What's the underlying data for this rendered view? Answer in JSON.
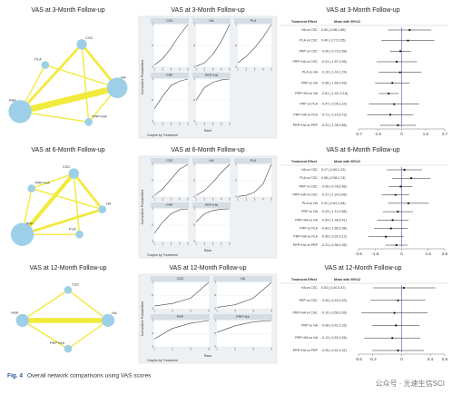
{
  "panels": [
    {
      "network": {
        "title": "VAS at 3-Month Follow-up",
        "nodes": [
          {
            "label": "CSC",
            "size": 3
          },
          {
            "label": "PLA",
            "size": 2
          },
          {
            "label": "HA",
            "size": 7
          },
          {
            "label": "PRP",
            "size": 8
          },
          {
            "label": "PRP+HA",
            "size": 2
          }
        ],
        "edges": [
          {
            "from": 3,
            "to": 2,
            "weight": 5
          },
          {
            "from": 3,
            "to": 0,
            "weight": 2
          },
          {
            "from": 0,
            "to": 2,
            "weight": 2
          },
          {
            "from": 3,
            "to": 1,
            "weight": 1
          },
          {
            "from": 1,
            "to": 2,
            "weight": 1
          },
          {
            "from": 3,
            "to": 4,
            "weight": 1
          },
          {
            "from": 2,
            "to": 4,
            "weight": 1
          },
          {
            "from": 0,
            "to": 4,
            "weight": 1
          }
        ]
      },
      "ranking": {
        "title": "VAS at 3-Month Follow-up",
        "y_label": "Cumulative Probabilities",
        "x_label": "Rank",
        "note": "Graphs by Treatment",
        "yticks": [
          0,
          {
            "value": 0.5,
            "label": ".5"
          },
          1
        ],
        "xticks": [
          1,
          2,
          3,
          4,
          5
        ],
        "panels": [
          {
            "label": "CSC",
            "values": [
              0.05,
              0.2,
              0.45,
              0.75,
              1
            ]
          },
          {
            "label": "HA",
            "values": [
              0.02,
              0.1,
              0.3,
              0.6,
              1
            ]
          },
          {
            "label": "PLA",
            "values": [
              0.1,
              0.25,
              0.45,
              0.7,
              1
            ]
          },
          {
            "label": "PRP",
            "values": [
              0.3,
              0.6,
              0.85,
              0.95,
              1
            ]
          },
          {
            "label": "PRP+HA",
            "values": [
              0.5,
              0.8,
              0.92,
              0.98,
              1
            ]
          }
        ]
      },
      "forest": {
        "title": "VAS at 3-Month Follow-up",
        "headers": [
          "Treatment Effect",
          "Mean with 95%CI"
        ],
        "xlim": [
          -2.7,
          2.7
        ],
        "xticks": [
          -2.7,
          -1.5,
          0,
          1.5,
          2.7
        ],
        "rows": [
          {
            "label": "HA vs CSC",
            "text": "0.50 (-0.86,1.86)",
            "mean": 0.5,
            "lo": -0.86,
            "hi": 1.86
          },
          {
            "label": "PLA vs CSC",
            "text": "0.40 (-1.27,2.05)",
            "mean": 0.4,
            "lo": -1.27,
            "hi": 2.05
          },
          {
            "label": "PRP vs CSC",
            "text": "-0.08 (-0.73,0.58)",
            "mean": -0.08,
            "lo": -0.73,
            "hi": 0.58
          },
          {
            "label": "PRP+HA vs CSC",
            "text": "-0.31 (-1.57,0.96)",
            "mean": -0.31,
            "lo": -1.57,
            "hi": 0.96
          },
          {
            "label": "PLA vs HA",
            "text": "-0.10 (-1.44,1.24)",
            "mean": -0.1,
            "lo": -1.44,
            "hi": 1.24
          },
          {
            "label": "PRP vs HA",
            "text": "-0.58 (-1.66,0.49)",
            "mean": -0.58,
            "lo": -1.66,
            "hi": 0.49
          },
          {
            "label": "PRP+HA vs HA",
            "text": "-0.81 (-1.43,-0.18)",
            "mean": -0.81,
            "lo": -1.43,
            "hi": -0.18
          },
          {
            "label": "PRP vs PLA",
            "text": "-0.47 (-2.05,1.10)",
            "mean": -0.47,
            "lo": -2.05,
            "hi": 1.1
          },
          {
            "label": "PRP+HA vs PLA",
            "text": "-0.71 (-2.15,0.73)",
            "mean": -0.71,
            "lo": -2.15,
            "hi": 0.73
          },
          {
            "label": "PRP+HA vs PRP",
            "text": "-0.23 (-1.35,0.88)",
            "mean": -0.23,
            "lo": -1.35,
            "hi": 0.88
          }
        ]
      }
    },
    {
      "network": {
        "title": "VAS at 6-Month Follow-up",
        "nodes": [
          {
            "label": "PRP+HA",
            "size": 2
          },
          {
            "label": "CSC",
            "size": 3
          },
          {
            "label": "HA",
            "size": 2
          },
          {
            "label": "PLA",
            "size": 2
          },
          {
            "label": "PRP",
            "size": 8
          }
        ],
        "edges": [
          {
            "from": 4,
            "to": 1,
            "weight": 3
          },
          {
            "from": 4,
            "to": 2,
            "weight": 2
          },
          {
            "from": 1,
            "to": 2,
            "weight": 2
          },
          {
            "from": 4,
            "to": 0,
            "weight": 1
          },
          {
            "from": 0,
            "to": 1,
            "weight": 1
          },
          {
            "from": 4,
            "to": 3,
            "weight": 1
          },
          {
            "from": 1,
            "to": 3,
            "weight": 1
          },
          {
            "from": 0,
            "to": 2,
            "weight": 1
          }
        ]
      },
      "ranking": {
        "title": "VAS at 6-Month Follow-up",
        "y_label": "Cumulative Probabilities",
        "x_label": "Rank",
        "note": "Graphs by Treatment",
        "yticks": [
          0,
          {
            "value": 0.5,
            "label": ".5"
          },
          1
        ],
        "xticks": [
          1,
          2,
          3,
          4,
          5
        ],
        "panels": [
          {
            "label": "CSC",
            "values": [
              0.05,
              0.25,
              0.55,
              0.85,
              1
            ]
          },
          {
            "label": "HA",
            "values": [
              0.05,
              0.2,
              0.45,
              0.75,
              1
            ]
          },
          {
            "label": "PLA",
            "values": [
              0.02,
              0.05,
              0.15,
              0.4,
              1
            ]
          },
          {
            "label": "PRP",
            "values": [
              0.25,
              0.6,
              0.85,
              0.97,
              1
            ]
          },
          {
            "label": "PRP+HA",
            "values": [
              0.6,
              0.85,
              0.95,
              0.99,
              1
            ]
          }
        ]
      },
      "forest": {
        "title": "VAS at 6-Month Follow-up",
        "headers": [
          "Treatment Effect",
          "Mean with 95%CI"
        ],
        "xlim": [
          -2.6,
          2.6
        ],
        "xticks": [
          -2.6,
          -1.6,
          0,
          1.6,
          2.6
        ],
        "rows": [
          {
            "label": "HA vs CSC",
            "text": "0.17 (-0.89,1.22)",
            "mean": 0.17,
            "lo": -0.89,
            "hi": 1.22
          },
          {
            "label": "PLA vs CSC",
            "text": "0.58 (-0.58,1.74)",
            "mean": 0.58,
            "lo": -0.58,
            "hi": 1.74
          },
          {
            "label": "PRP vs CSC",
            "text": "-0.06 (-0.78,0.66)",
            "mean": -0.06,
            "lo": -0.78,
            "hi": 0.66
          },
          {
            "label": "PRP+HA vs CSC",
            "text": "-0.37 (-1.20,0.46)",
            "mean": -0.37,
            "lo": -1.2,
            "hi": 0.46
          },
          {
            "label": "PLA vs HA",
            "text": "0.41 (-0.81,1.64)",
            "mean": 0.41,
            "lo": -0.81,
            "hi": 1.64
          },
          {
            "label": "PRP vs HA",
            "text": "-0.23 (-1.14,0.68)",
            "mean": -0.23,
            "lo": -1.14,
            "hi": 0.68
          },
          {
            "label": "PRP+HA vs HA",
            "text": "-0.54 (-1.48,0.41)",
            "mean": -0.54,
            "lo": -1.48,
            "hi": 0.41
          },
          {
            "label": "PRP vs PLA",
            "text": "-0.64 (-1.66,0.38)",
            "mean": -0.64,
            "lo": -1.66,
            "hi": 0.38
          },
          {
            "label": "PRP+HA vs PLA",
            "text": "-0.95 (-2.02,0.12)",
            "mean": -0.95,
            "lo": -2.02,
            "hi": 0.12
          },
          {
            "label": "PRP+HA vs PRP",
            "text": "-0.31 (-0.98,0.36)",
            "mean": -0.31,
            "lo": -0.98,
            "hi": 0.36
          }
        ]
      }
    },
    {
      "network": {
        "title": "VAS at 12-Month Follow-up",
        "nodes": [
          {
            "label": "CSC",
            "size": 2
          },
          {
            "label": "PRP",
            "size": 4
          },
          {
            "label": "HA",
            "size": 4
          },
          {
            "label": "PRP+HA",
            "size": 2
          }
        ],
        "edges": [
          {
            "from": 1,
            "to": 2,
            "weight": 4
          },
          {
            "from": 1,
            "to": 0,
            "weight": 1
          },
          {
            "from": 0,
            "to": 2,
            "weight": 1
          },
          {
            "from": 1,
            "to": 3,
            "weight": 1
          },
          {
            "from": 2,
            "to": 3,
            "weight": 1
          }
        ]
      },
      "ranking": {
        "title": "VAS at 12-Month Follow-up",
        "y_label": "Cumulative Probabilities",
        "x_label": "Rank",
        "note": "Graphs by Treatment",
        "yticks": [
          0,
          {
            "value": 0.5,
            "label": ".5"
          },
          1
        ],
        "xticks": [
          1,
          2,
          3,
          4
        ],
        "panels": [
          {
            "label": "CSC",
            "values": [
              0.1,
              0.2,
              0.4,
              1
            ]
          },
          {
            "label": "HA",
            "values": [
              0.05,
              0.15,
              0.4,
              1
            ]
          },
          {
            "label": "PRP",
            "values": [
              0.3,
              0.7,
              0.9,
              1
            ]
          },
          {
            "label": "PRP+HA",
            "values": [
              0.55,
              0.8,
              0.95,
              1
            ]
          }
        ]
      },
      "forest": {
        "title": "VAS at 12-Month Follow-up",
        "headers": [
          "Treatment Effect",
          "Mean with 95%CI"
        ],
        "xlim": [
          -0.6,
          0.6
        ],
        "xticks": [
          -0.6,
          -0.4,
          0,
          0.4,
          0.6
        ],
        "rows": [
          {
            "label": "HA vs CSC",
            "text": "0.03 (-0.40,0.47)",
            "mean": 0.03,
            "lo": -0.4,
            "hi": 0.47
          },
          {
            "label": "PRP vs CSC",
            "text": "-0.05 (-0.43,0.33)",
            "mean": -0.05,
            "lo": -0.43,
            "hi": 0.33
          },
          {
            "label": "PRP+HA vs CSC",
            "text": "-0.10 (-0.56,0.36)",
            "mean": -0.1,
            "lo": -0.56,
            "hi": 0.36
          },
          {
            "label": "PRP vs HA",
            "text": "-0.08 (-0.41,0.25)",
            "mean": -0.08,
            "lo": -0.41,
            "hi": 0.25
          },
          {
            "label": "PRP+HA vs HA",
            "text": "-0.13 (-0.52,0.26)",
            "mean": -0.13,
            "lo": -0.52,
            "hi": 0.26
          },
          {
            "label": "PRP+HA vs PRP",
            "text": "-0.05 (-0.41,0.31)",
            "mean": -0.05,
            "lo": -0.41,
            "hi": 0.31
          }
        ]
      }
    }
  ],
  "caption": {
    "label": "Fig. 4",
    "text": "Overall network comparisons using VAS scores"
  },
  "watermark": "公众号 · 光速生信SCI"
}
